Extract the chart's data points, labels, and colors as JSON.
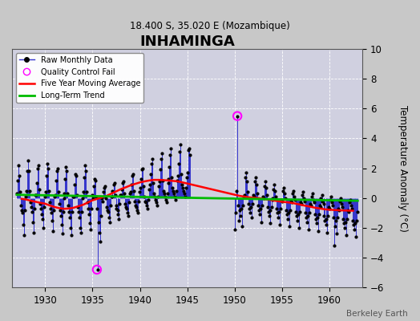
{
  "title": "INHAMINGA",
  "subtitle": "18.400 S, 35.020 E (Mozambique)",
  "ylabel": "Temperature Anomaly (°C)",
  "watermark": "Berkeley Earth",
  "xlim": [
    1926.5,
    1963.5
  ],
  "ylim": [
    -6,
    10
  ],
  "yticks": [
    -6,
    -4,
    -2,
    0,
    2,
    4,
    6,
    8,
    10
  ],
  "xticks": [
    1930,
    1935,
    1940,
    1945,
    1950,
    1955,
    1960
  ],
  "background_color": "#c8c8c8",
  "plot_bg_color": "#d0d0e0",
  "grid_color": "#ffffff",
  "raw_color": "#3333cc",
  "moving_avg_color": "#ff0000",
  "trend_color": "#00bb00",
  "qc_fail_color": "#ff00ff",
  "raw_data_times": [
    1927.04,
    1927.12,
    1927.21,
    1927.29,
    1927.38,
    1927.46,
    1927.54,
    1927.63,
    1927.71,
    1927.79,
    1927.88,
    1927.96,
    1928.04,
    1928.12,
    1928.21,
    1928.29,
    1928.38,
    1928.46,
    1928.54,
    1928.63,
    1928.71,
    1928.79,
    1928.88,
    1928.96,
    1929.04,
    1929.12,
    1929.21,
    1929.29,
    1929.38,
    1929.46,
    1929.54,
    1929.63,
    1929.71,
    1929.79,
    1929.88,
    1929.96,
    1930.04,
    1930.12,
    1930.21,
    1930.29,
    1930.38,
    1930.46,
    1930.54,
    1930.63,
    1930.71,
    1930.79,
    1930.88,
    1930.96,
    1931.04,
    1931.12,
    1931.21,
    1931.29,
    1931.38,
    1931.46,
    1931.54,
    1931.63,
    1931.71,
    1931.79,
    1931.88,
    1931.96,
    1932.04,
    1932.12,
    1932.21,
    1932.29,
    1932.38,
    1932.46,
    1932.54,
    1932.63,
    1932.71,
    1932.79,
    1932.88,
    1932.96,
    1933.04,
    1933.12,
    1933.21,
    1933.29,
    1933.38,
    1933.46,
    1933.54,
    1933.63,
    1933.71,
    1933.79,
    1933.88,
    1933.96,
    1934.04,
    1934.12,
    1934.21,
    1934.29,
    1934.38,
    1934.46,
    1934.54,
    1934.63,
    1934.71,
    1934.79,
    1934.88,
    1934.96,
    1935.04,
    1935.12,
    1935.21,
    1935.29,
    1935.38,
    1935.46,
    1935.54,
    1935.63,
    1935.71,
    1935.79,
    1935.88,
    1935.96,
    1936.04,
    1936.12,
    1936.21,
    1936.29,
    1936.38,
    1936.46,
    1936.54,
    1936.63,
    1936.71,
    1936.79,
    1936.88,
    1936.96,
    1937.04,
    1937.12,
    1937.21,
    1937.29,
    1937.38,
    1937.46,
    1937.54,
    1937.63,
    1937.71,
    1937.79,
    1937.88,
    1937.96,
    1938.04,
    1938.12,
    1938.21,
    1938.29,
    1938.38,
    1938.46,
    1938.54,
    1938.63,
    1938.71,
    1938.79,
    1938.88,
    1938.96,
    1939.04,
    1939.12,
    1939.21,
    1939.29,
    1939.38,
    1939.46,
    1939.54,
    1939.63,
    1939.71,
    1939.79,
    1939.88,
    1939.96,
    1940.04,
    1940.12,
    1940.21,
    1940.29,
    1940.38,
    1940.46,
    1940.54,
    1940.63,
    1940.71,
    1940.79,
    1940.88,
    1940.96,
    1941.04,
    1941.12,
    1941.21,
    1941.29,
    1941.38,
    1941.46,
    1941.54,
    1941.63,
    1941.71,
    1941.79,
    1941.88,
    1941.96,
    1942.04,
    1942.12,
    1942.21,
    1942.29,
    1942.38,
    1942.46,
    1942.54,
    1942.63,
    1942.71,
    1942.79,
    1942.88,
    1942.96,
    1943.04,
    1943.12,
    1943.21,
    1943.29,
    1943.38,
    1943.46,
    1943.54,
    1943.63,
    1943.71,
    1943.79,
    1943.88,
    1943.96,
    1944.04,
    1944.12,
    1944.21,
    1944.29,
    1944.38,
    1944.46,
    1944.54,
    1944.63,
    1944.71,
    1944.79,
    1944.88,
    1944.96,
    1945.04,
    1945.12,
    1945.21,
    1945.29,
    1950.04,
    1950.12,
    1950.21,
    1950.29,
    1950.38,
    1950.46,
    1950.54,
    1950.63,
    1950.71,
    1950.79,
    1950.88,
    1950.96,
    1951.04,
    1951.12,
    1951.21,
    1951.29,
    1951.38,
    1951.46,
    1951.54,
    1951.63,
    1951.71,
    1951.79,
    1951.88,
    1951.96,
    1952.04,
    1952.12,
    1952.21,
    1952.29,
    1952.38,
    1952.46,
    1952.54,
    1952.63,
    1952.71,
    1952.79,
    1952.88,
    1952.96,
    1953.04,
    1953.12,
    1953.21,
    1953.29,
    1953.38,
    1953.46,
    1953.54,
    1953.63,
    1953.71,
    1953.79,
    1953.88,
    1953.96,
    1954.04,
    1954.12,
    1954.21,
    1954.29,
    1954.38,
    1954.46,
    1954.54,
    1954.63,
    1954.71,
    1954.79,
    1954.88,
    1954.96,
    1955.04,
    1955.12,
    1955.21,
    1955.29,
    1955.38,
    1955.46,
    1955.54,
    1955.63,
    1955.71,
    1955.79,
    1955.88,
    1955.96,
    1956.04,
    1956.12,
    1956.21,
    1956.29,
    1956.38,
    1956.46,
    1956.54,
    1956.63,
    1956.71,
    1956.79,
    1956.88,
    1956.96,
    1957.04,
    1957.12,
    1957.21,
    1957.29,
    1957.38,
    1957.46,
    1957.54,
    1957.63,
    1957.71,
    1957.79,
    1957.88,
    1957.96,
    1958.04,
    1958.12,
    1958.21,
    1958.29,
    1958.38,
    1958.46,
    1958.54,
    1958.63,
    1958.71,
    1958.79,
    1958.88,
    1958.96,
    1959.04,
    1959.12,
    1959.21,
    1959.29,
    1959.38,
    1959.46,
    1959.54,
    1959.63,
    1959.71,
    1959.79,
    1959.88,
    1959.96,
    1960.04,
    1960.12,
    1960.21,
    1960.29,
    1960.38,
    1960.46,
    1960.54,
    1960.63,
    1960.71,
    1960.79,
    1960.88,
    1960.96,
    1961.04,
    1961.12,
    1961.21,
    1961.29,
    1961.38,
    1961.46,
    1961.54,
    1961.63,
    1961.71,
    1961.79,
    1961.88,
    1961.96,
    1962.04,
    1962.12,
    1962.21,
    1962.29,
    1962.38,
    1962.46,
    1962.54,
    1962.63,
    1962.71,
    1962.79,
    1962.88,
    1962.96
  ],
  "raw_data_values": [
    0.3,
    1.2,
    2.2,
    1.5,
    0.4,
    -0.5,
    -0.8,
    -1.0,
    -1.8,
    -2.5,
    -0.8,
    0.1,
    0.5,
    1.8,
    2.5,
    1.8,
    0.5,
    -0.3,
    -0.6,
    -0.9,
    -1.6,
    -2.3,
    -0.7,
    0.2,
    0.2,
    1.0,
    2.0,
    2.2,
    0.6,
    -0.4,
    -0.7,
    -1.1,
    -1.4,
    -2.0,
    -0.6,
    0.1,
    0.4,
    1.5,
    2.3,
    2.0,
    0.5,
    -0.3,
    -0.7,
    -1.0,
    -1.5,
    -2.2,
    -0.8,
    0.1,
    0.2,
    1.2,
    1.8,
    2.0,
    0.4,
    -0.4,
    -0.8,
    -1.2,
    -1.8,
    -2.4,
    -0.9,
    0.0,
    0.3,
    1.3,
    2.1,
    1.8,
    0.3,
    -0.5,
    -0.9,
    -1.3,
    -2.0,
    -2.5,
    -0.9,
    0.1,
    0.1,
    0.9,
    1.6,
    1.5,
    0.2,
    -0.6,
    -0.9,
    -1.3,
    -2.0,
    -2.3,
    -0.9,
    0.0,
    0.4,
    1.4,
    2.2,
    1.8,
    0.4,
    -0.3,
    -0.7,
    -1.1,
    -1.7,
    -2.1,
    -0.7,
    0.2,
    0.0,
    0.8,
    1.3,
    1.2,
    0.1,
    -0.7,
    -4.8,
    -1.6,
    -2.3,
    -2.9,
    -1.2,
    0.0,
    -0.2,
    0.4,
    0.7,
    0.8,
    0.0,
    -0.6,
    -0.8,
    -0.9,
    -1.3,
    -1.6,
    -0.5,
    0.1,
    0.1,
    0.5,
    0.9,
    1.0,
    0.2,
    -0.5,
    -0.7,
    -0.8,
    -1.1,
    -1.4,
    -0.4,
    0.2,
    0.2,
    0.6,
    1.0,
    1.1,
    0.3,
    -0.4,
    -0.6,
    -0.7,
    -1.0,
    -1.2,
    -0.3,
    0.3,
    0.4,
    0.9,
    1.5,
    1.6,
    0.5,
    -0.2,
    -0.5,
    -0.6,
    -0.8,
    -1.0,
    -0.2,
    0.4,
    0.7,
    1.3,
    1.9,
    2.0,
    0.8,
    0.1,
    -0.2,
    -0.3,
    -0.5,
    -0.7,
    -0.1,
    0.6,
    0.9,
    1.6,
    2.3,
    2.6,
    1.0,
    0.3,
    0.1,
    -0.1,
    -0.3,
    -0.5,
    0.1,
    0.8,
    1.1,
    1.9,
    2.6,
    3.0,
    1.2,
    0.5,
    0.3,
    0.1,
    -0.1,
    -0.3,
    0.3,
    1.0,
    1.3,
    2.1,
    2.9,
    3.3,
    1.4,
    0.7,
    0.5,
    0.3,
    0.1,
    -0.1,
    0.5,
    1.2,
    1.5,
    2.3,
    3.1,
    3.6,
    1.6,
    0.9,
    0.7,
    0.5,
    0.3,
    0.1,
    0.7,
    1.4,
    1.7,
    3.2,
    3.3,
    2.9,
    -2.1,
    -1.0,
    0.5,
    5.5,
    -0.5,
    -1.5,
    -0.8,
    -1.2,
    -0.7,
    -1.9,
    -0.5,
    0.1,
    0.2,
    1.4,
    1.7,
    1.1,
    0.4,
    -0.4,
    -0.7,
    -1.0,
    -0.6,
    -1.3,
    -0.4,
    0.2,
    0.1,
    1.1,
    1.4,
    0.9,
    0.3,
    -0.5,
    -0.8,
    -1.1,
    -0.7,
    -1.6,
    -0.5,
    0.1,
    0.0,
    0.8,
    1.1,
    0.7,
    0.2,
    -0.6,
    -0.9,
    -1.2,
    -0.8,
    -1.7,
    -0.6,
    0.0,
    -0.1,
    0.6,
    0.9,
    0.5,
    0.1,
    -0.7,
    -1.0,
    -1.3,
    -0.9,
    -1.8,
    -0.7,
    -0.1,
    -0.2,
    0.5,
    0.7,
    0.3,
    0.0,
    -0.8,
    -1.1,
    -1.4,
    -1.0,
    -1.9,
    -0.8,
    -0.2,
    -0.3,
    0.3,
    0.5,
    0.1,
    -0.1,
    -0.9,
    -1.2,
    -1.5,
    -1.1,
    -2.0,
    -0.9,
    -0.3,
    -0.4,
    0.2,
    0.4,
    0.0,
    -0.2,
    -1.0,
    -1.3,
    -1.6,
    -1.2,
    -2.1,
    -1.0,
    -0.4,
    -0.5,
    0.1,
    0.3,
    -0.1,
    -0.3,
    -1.1,
    -1.4,
    -1.7,
    -1.3,
    -2.2,
    -1.1,
    -0.5,
    -0.6,
    0.0,
    0.2,
    -0.2,
    -0.4,
    -1.2,
    -1.5,
    -1.8,
    -1.4,
    -2.3,
    -1.2,
    -0.6,
    -0.7,
    -0.1,
    0.1,
    -0.3,
    -0.5,
    -1.3,
    -3.2,
    -1.9,
    -1.5,
    -2.4,
    -1.3,
    -0.7,
    -0.8,
    -0.2,
    0.0,
    -0.4,
    -0.6,
    -1.4,
    -1.7,
    -2.0,
    -1.6,
    -2.5,
    -1.4,
    -0.8,
    -0.9,
    -0.3,
    -0.1,
    -0.5,
    -0.7,
    -1.5,
    -1.8,
    -2.1,
    -1.7,
    -2.6,
    -1.5,
    -0.9
  ],
  "qc_fail_times": [
    1935.46,
    1950.29
  ],
  "qc_fail_values": [
    -4.8,
    5.5
  ],
  "moving_avg_times": [
    1927.5,
    1928.0,
    1928.5,
    1929.0,
    1929.5,
    1930.0,
    1930.5,
    1931.0,
    1931.5,
    1932.0,
    1932.5,
    1933.0,
    1933.5,
    1934.0,
    1934.5,
    1935.0,
    1935.5,
    1936.0,
    1936.5,
    1937.0,
    1937.5,
    1938.0,
    1938.5,
    1939.0,
    1939.5,
    1940.0,
    1940.5,
    1941.0,
    1941.5,
    1942.0,
    1942.5,
    1943.0,
    1943.5,
    1944.0,
    1944.5,
    1950.5,
    1951.0,
    1951.5,
    1952.0,
    1952.5,
    1953.0,
    1953.5,
    1954.0,
    1954.5,
    1955.0,
    1955.5,
    1956.0,
    1956.5,
    1957.0,
    1957.5,
    1958.0,
    1958.5,
    1959.0,
    1959.5,
    1960.0,
    1960.5,
    1961.0,
    1961.5,
    1962.0,
    1962.5
  ],
  "moving_avg_values": [
    -0.05,
    -0.1,
    -0.18,
    -0.25,
    -0.32,
    -0.38,
    -0.5,
    -0.6,
    -0.68,
    -0.72,
    -0.7,
    -0.65,
    -0.55,
    -0.45,
    -0.3,
    -0.15,
    -0.05,
    0.05,
    0.15,
    0.3,
    0.45,
    0.6,
    0.72,
    0.85,
    0.95,
    1.05,
    1.12,
    1.18,
    1.22,
    1.22,
    1.2,
    1.18,
    1.15,
    1.12,
    1.05,
    0.15,
    0.1,
    0.05,
    0.02,
    0.0,
    -0.05,
    -0.1,
    -0.15,
    -0.2,
    -0.25,
    -0.28,
    -0.32,
    -0.38,
    -0.45,
    -0.52,
    -0.58,
    -0.65,
    -0.7,
    -0.75,
    -0.78,
    -0.8,
    -0.82,
    -0.83,
    -0.84,
    -0.85
  ],
  "trend_times": [
    1927.0,
    1963.0
  ],
  "trend_values": [
    0.22,
    -0.18
  ]
}
